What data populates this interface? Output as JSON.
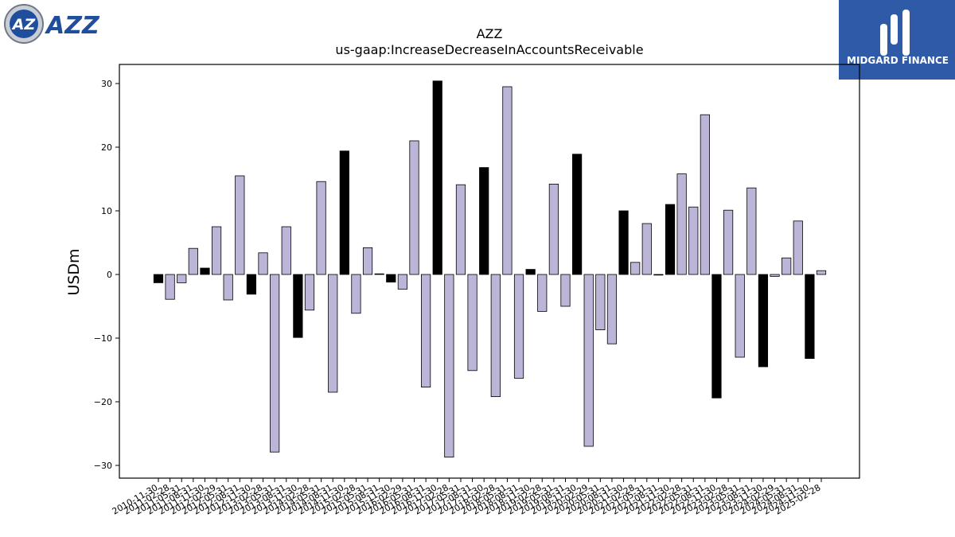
{
  "logos": {
    "left_text": "AZZ",
    "left_mark": "AZ",
    "right_text": "MIDGARD FINANCE"
  },
  "colors": {
    "bar_default": "#bcb5d8",
    "bar_highlight": "#000000",
    "axis": "#000000",
    "brand_blue": "#1f4e9c",
    "midgard_bg": "#2f5aa8"
  },
  "chart_data": {
    "type": "bar",
    "title": "AZZ",
    "subtitle": "us-gaap:IncreaseDecreaseInAccountsReceivable",
    "xlabel": "",
    "ylabel": "USDm",
    "ylim": [
      -32,
      33
    ],
    "yticks": [
      -30,
      -20,
      -10,
      0,
      10,
      20,
      30
    ],
    "grid": false,
    "categories": [
      "2010-11-30",
      "2011-02-28",
      "2011-05-31",
      "2011-08-31",
      "2011-11-30",
      "2012-02-29",
      "2012-05-31",
      "2012-08-31",
      "2012-11-30",
      "2013-02-28",
      "2013-05-31",
      "2013-08-31",
      "2013-11-30",
      "2014-02-28",
      "2014-05-31",
      "2014-08-31",
      "2014-11-30",
      "2015-02-28",
      "2015-05-31",
      "2015-08-31",
      "2015-11-30",
      "2016-02-29",
      "2016-05-31",
      "2016-08-31",
      "2016-11-30",
      "2017-02-28",
      "2017-05-31",
      "2017-08-31",
      "2017-11-30",
      "2018-02-28",
      "2018-05-31",
      "2018-08-31",
      "2018-11-30",
      "2019-02-28",
      "2019-05-31",
      "2019-08-31",
      "2019-11-30",
      "2020-02-29",
      "2020-05-31",
      "2020-08-31",
      "2020-11-30",
      "2021-02-28",
      "2021-05-31",
      "2021-08-31",
      "2021-11-30",
      "2022-02-28",
      "2022-05-31",
      "2022-08-31",
      "2022-11-30",
      "2023-02-28",
      "2023-05-31",
      "2023-08-31",
      "2023-11-30",
      "2024-02-29",
      "2024-05-31",
      "2024-08-31",
      "2024-11-30",
      "2025-02-28"
    ],
    "values": [
      -1.3,
      -3.9,
      -1.3,
      4.1,
      1.0,
      7.5,
      -4.0,
      15.5,
      -3.1,
      3.4,
      -27.9,
      7.5,
      -9.9,
      -5.6,
      14.6,
      -18.5,
      19.4,
      -6.1,
      4.2,
      0.1,
      -1.2,
      -2.3,
      21.0,
      -17.7,
      30.4,
      -28.7,
      14.1,
      -15.1,
      16.8,
      -19.2,
      29.5,
      -16.3,
      0.8,
      -5.8,
      14.2,
      -5.0,
      18.9,
      -27.0,
      -8.7,
      -10.9,
      10.0,
      1.9,
      8.0,
      0.0,
      11.0,
      15.8,
      10.6,
      25.1,
      -19.4,
      10.1,
      -13.0,
      13.6,
      -14.5,
      -0.3,
      2.6,
      8.4,
      -13.2,
      0.6
    ],
    "highlighted": [
      true,
      false,
      false,
      false,
      true,
      false,
      false,
      false,
      true,
      false,
      false,
      false,
      true,
      false,
      false,
      false,
      true,
      false,
      false,
      true,
      true,
      false,
      false,
      false,
      true,
      false,
      false,
      false,
      true,
      false,
      false,
      false,
      true,
      false,
      false,
      false,
      true,
      false,
      false,
      false,
      true,
      false,
      false,
      false,
      true,
      false,
      false,
      false,
      true,
      false,
      false,
      false,
      true,
      false,
      false,
      false,
      true,
      false
    ]
  }
}
